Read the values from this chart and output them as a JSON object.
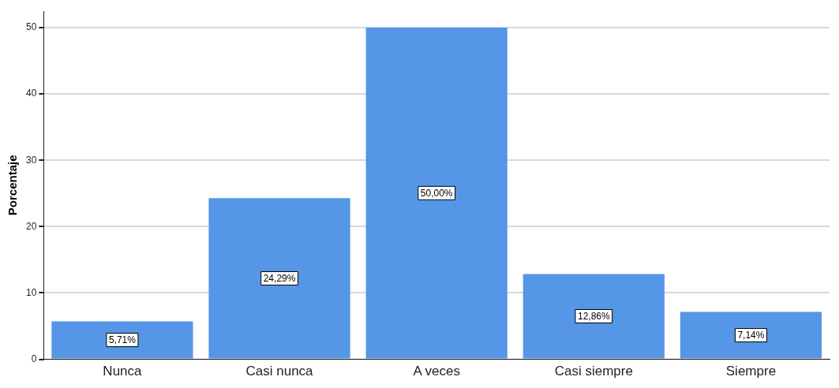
{
  "chart_data": {
    "type": "bar",
    "ylabel": "Porcentaje",
    "categories": [
      "Nunca",
      "Casi nunca",
      "A veces",
      "Casi siempre",
      "Siempre"
    ],
    "values": [
      5.71,
      24.29,
      50.0,
      12.86,
      7.14
    ],
    "value_labels": [
      "5,71%",
      "24,29%",
      "50,00%",
      "12,86%",
      "7,14%"
    ],
    "color": "#5596e6",
    "ylim": [
      0,
      52.5
    ],
    "yticks": [
      0,
      10,
      20,
      30,
      40,
      50
    ],
    "grid": "y",
    "legend": false
  }
}
